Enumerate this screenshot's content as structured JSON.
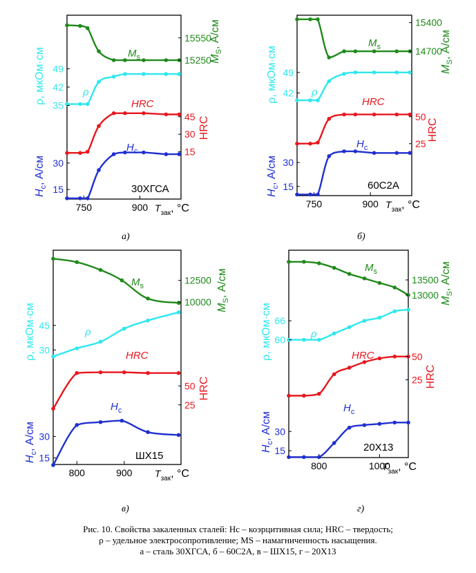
{
  "colors": {
    "Hc": "#1f2fd0",
    "HRC": "#e8161d",
    "rho": "#2de8ee",
    "Ms": "#1f8a1a"
  },
  "axis_titles": {
    "Hc": "H",
    "Hc_sub": "c",
    "Hc_unit": ", А/см",
    "rho": "ρ, мкОм·см",
    "HRC": "HRC",
    "Ms": "M",
    "Ms_sub": "S",
    "Ms_unit": ", А/см",
    "x": "T",
    "x_sub": "зак",
    "x_unit": ", °C"
  },
  "curve_labels": {
    "Hc": "H",
    "Hc_sub": "c",
    "HRC": "HRC",
    "rho": "ρ",
    "Ms": "M",
    "Ms_sub": "s"
  },
  "panel_labels": [
    "а)",
    "б)",
    "в)",
    "г)"
  ],
  "caption": {
    "line1": "Рис. 10. Свойства закаленных сталей: Hc – коэрцитивная сила; HRC – твердость;",
    "line2": "ρ – удельное электросопротивление; MS – намагниченность насыщения.",
    "line3": "а – сталь 30ХГСА, б – 60С2А, в – ШХ15, г – 20Х13"
  },
  "chart_data": [
    {
      "type": "line",
      "steel": "30ХГСА",
      "xlim": [
        705,
        1010
      ],
      "x_ticks": [
        750,
        900
      ],
      "ticks": {
        "Hc": [
          15,
          30
        ],
        "HRC": [
          15,
          30,
          45
        ],
        "rho": [
          35,
          42,
          49
        ],
        "Ms": [
          15250,
          15550
        ]
      },
      "series": [
        {
          "name": "Hc",
          "unit": "А/см",
          "range": [
            8,
            37
          ],
          "points": [
            [
              705,
              10
            ],
            [
              740,
              10
            ],
            [
              760,
              10
            ],
            [
              790,
              26
            ],
            [
              830,
              35
            ],
            [
              860,
              36
            ],
            [
              910,
              36
            ],
            [
              970,
              35
            ],
            [
              1005,
              35
            ]
          ]
        },
        {
          "name": "HRC",
          "unit": "",
          "range": [
            10,
            55
          ],
          "points": [
            [
              705,
              14
            ],
            [
              740,
              14
            ],
            [
              760,
              15
            ],
            [
              790,
              37
            ],
            [
              830,
              48
            ],
            [
              860,
              48
            ],
            [
              910,
              48
            ],
            [
              970,
              47
            ],
            [
              1005,
              47
            ]
          ]
        },
        {
          "name": "rho",
          "unit": "мкОм·см",
          "range": [
            33,
            51
          ],
          "points": [
            [
              705,
              35.5
            ],
            [
              740,
              35.5
            ],
            [
              760,
              35.5
            ],
            [
              790,
              44
            ],
            [
              830,
              46
            ],
            [
              860,
              47
            ],
            [
              910,
              47
            ],
            [
              970,
              47
            ],
            [
              1005,
              47
            ]
          ]
        },
        {
          "name": "Ms",
          "unit": "А/см",
          "range": [
            15130,
            15780
          ],
          "points": [
            [
              705,
              15720
            ],
            [
              740,
              15710
            ],
            [
              760,
              15680
            ],
            [
              790,
              15370
            ],
            [
              830,
              15250
            ],
            [
              860,
              15250
            ],
            [
              910,
              15250
            ],
            [
              970,
              15250
            ],
            [
              1005,
              15250
            ]
          ]
        }
      ]
    },
    {
      "type": "line",
      "steel": "60С2А",
      "xlim": [
        705,
        1010
      ],
      "x_ticks": [
        750,
        900
      ],
      "ticks": {
        "Hc": [
          15,
          30
        ],
        "HRC": [
          25,
          50
        ],
        "rho": [
          42,
          49
        ],
        "Ms": [
          14700,
          15400
        ]
      },
      "series": [
        {
          "name": "Hc",
          "unit": "А/см",
          "range": [
            8,
            40
          ],
          "points": [
            [
              705,
              10
            ],
            [
              740,
              10
            ],
            [
              760,
              10
            ],
            [
              790,
              34
            ],
            [
              830,
              37
            ],
            [
              860,
              37
            ],
            [
              910,
              36
            ],
            [
              970,
              36
            ],
            [
              1005,
              36
            ]
          ]
        },
        {
          "name": "HRC",
          "unit": "",
          "range": [
            14,
            62
          ],
          "points": [
            [
              705,
              25
            ],
            [
              740,
              25
            ],
            [
              760,
              26
            ],
            [
              790,
              48
            ],
            [
              830,
              52
            ],
            [
              860,
              52
            ],
            [
              910,
              52
            ],
            [
              970,
              52
            ],
            [
              1005,
              52
            ]
          ]
        },
        {
          "name": "rho",
          "unit": "мкОм·см",
          "range": [
            36,
            52
          ],
          "points": [
            [
              705,
              39.5
            ],
            [
              740,
              39.5
            ],
            [
              760,
              39.5
            ],
            [
              790,
              46
            ],
            [
              830,
              48.5
            ],
            [
              860,
              49
            ],
            [
              910,
              49
            ],
            [
              970,
              49
            ],
            [
              1005,
              49
            ]
          ]
        },
        {
          "name": "Ms",
          "unit": "А/см",
          "range": [
            14350,
            15580
          ],
          "points": [
            [
              705,
              15480
            ],
            [
              740,
              15480
            ],
            [
              760,
              15480
            ],
            [
              790,
              14550
            ],
            [
              830,
              14700
            ],
            [
              860,
              14700
            ],
            [
              910,
              14700
            ],
            [
              970,
              14700
            ],
            [
              1005,
              14700
            ]
          ]
        }
      ]
    },
    {
      "type": "line",
      "steel": "ШХ15",
      "xlim": [
        750,
        1020
      ],
      "x_ticks": [
        800,
        900
      ],
      "ticks": {
        "Hc": [
          15,
          30
        ],
        "HRC": [
          25,
          50
        ],
        "rho": [
          30,
          45
        ],
        "Ms": [
          10000,
          12500
        ]
      },
      "series": [
        {
          "name": "Hc",
          "unit": "А/см",
          "range": [
            8,
            50
          ],
          "points": [
            [
              750,
              10
            ],
            [
              800,
              38
            ],
            [
              850,
              40
            ],
            [
              895,
              41
            ],
            [
              950,
              33
            ],
            [
              1015,
              31
            ]
          ]
        },
        {
          "name": "HRC",
          "unit": "",
          "range": [
            12,
            85
          ],
          "points": [
            [
              750,
              20
            ],
            [
              800,
              67
            ],
            [
              850,
              68
            ],
            [
              900,
              68
            ],
            [
              950,
              67
            ],
            [
              1015,
              67
            ]
          ]
        },
        {
          "name": "rho",
          "unit": "мкОм·см",
          "range": [
            20,
            58
          ],
          "points": [
            [
              750,
              26
            ],
            [
              800,
              31
            ],
            [
              850,
              35
            ],
            [
              900,
              43
            ],
            [
              950,
              48
            ],
            [
              1015,
              53
            ]
          ]
        },
        {
          "name": "Ms",
          "unit": "А/см",
          "range": [
            8800,
            15500
          ],
          "points": [
            [
              750,
              15000
            ],
            [
              800,
              14600
            ],
            [
              850,
              13700
            ],
            [
              895,
              12500
            ],
            [
              950,
              10400
            ],
            [
              1015,
              9900
            ]
          ]
        }
      ]
    },
    {
      "type": "line",
      "steel": "20Х13",
      "xlim": [
        700,
        1095
      ],
      "x_ticks": [
        800,
        1000
      ],
      "ticks": {
        "Hc": [
          15,
          30
        ],
        "HRC": [
          25,
          50
        ],
        "rho": [
          60,
          66
        ],
        "Ms": [
          13000,
          13500
        ]
      },
      "series": [
        {
          "name": "Hc",
          "unit": "А/см",
          "range": [
            8,
            55
          ],
          "points": [
            [
              700,
              10
            ],
            [
              750,
              10
            ],
            [
              800,
              10
            ],
            [
              850,
              21
            ],
            [
              900,
              33
            ],
            [
              950,
              35
            ],
            [
              1000,
              36
            ],
            [
              1050,
              37
            ],
            [
              1095,
              37
            ]
          ]
        },
        {
          "name": "HRC",
          "unit": "",
          "range": [
            -5,
            58
          ],
          "points": [
            [
              700,
              8
            ],
            [
              750,
              8
            ],
            [
              800,
              10
            ],
            [
              850,
              31
            ],
            [
              900,
              38
            ],
            [
              950,
              44
            ],
            [
              1000,
              48
            ],
            [
              1050,
              50
            ],
            [
              1095,
              50
            ]
          ]
        },
        {
          "name": "rho",
          "unit": "мкОм·см",
          "range": [
            56,
            73
          ],
          "points": [
            [
              700,
              60
            ],
            [
              750,
              60
            ],
            [
              800,
              60
            ],
            [
              850,
              62
            ],
            [
              900,
              64
            ],
            [
              950,
              66
            ],
            [
              1000,
              67
            ],
            [
              1050,
              69
            ],
            [
              1095,
              69.5
            ]
          ]
        },
        {
          "name": "Ms",
          "unit": "А/см",
          "range": [
            12700,
            14300
          ],
          "points": [
            [
              700,
              14100
            ],
            [
              750,
              14100
            ],
            [
              800,
              14050
            ],
            [
              850,
              13900
            ],
            [
              900,
              13700
            ],
            [
              950,
              13550
            ],
            [
              1000,
              13400
            ],
            [
              1050,
              13250
            ],
            [
              1095,
              13000
            ]
          ]
        }
      ]
    }
  ]
}
